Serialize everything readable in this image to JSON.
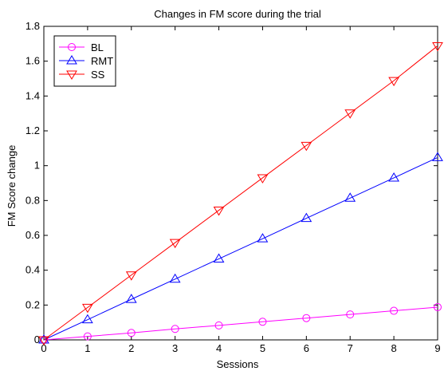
{
  "chart_data": {
    "type": "line",
    "title": "Changes in FM score during the trial",
    "xlabel": "Sessions",
    "ylabel": "FM Score change",
    "xlim": [
      0,
      9
    ],
    "ylim": [
      0,
      1.8
    ],
    "xticks": [
      0,
      1,
      2,
      3,
      4,
      5,
      6,
      7,
      8,
      9
    ],
    "yticks": [
      0,
      0.2,
      0.4,
      0.6,
      0.8,
      1,
      1.2,
      1.4,
      1.6,
      1.8
    ],
    "ytick_labels": [
      "0",
      "0.2",
      "0.4",
      "0.6",
      "0.8",
      "1",
      "1.2",
      "1.4",
      "1.6",
      "1.8"
    ],
    "grid": false,
    "legend_position": "top-left",
    "x": [
      0,
      1,
      2,
      3,
      4,
      5,
      6,
      7,
      8,
      9
    ],
    "series": [
      {
        "name": "BL",
        "color": "#ff00ff",
        "marker": "circle",
        "values": [
          0,
          0.02,
          0.04,
          0.063,
          0.083,
          0.104,
          0.125,
          0.146,
          0.167,
          0.188
        ]
      },
      {
        "name": "RMT",
        "color": "#0000ff",
        "marker": "triangle-up",
        "values": [
          0,
          0.116,
          0.233,
          0.349,
          0.465,
          0.581,
          0.698,
          0.814,
          0.93,
          1.047
        ]
      },
      {
        "name": "SS",
        "color": "#ff0000",
        "marker": "triangle-down",
        "values": [
          0,
          0.186,
          0.372,
          0.558,
          0.744,
          0.93,
          1.116,
          1.302,
          1.488,
          1.688
        ]
      }
    ]
  }
}
